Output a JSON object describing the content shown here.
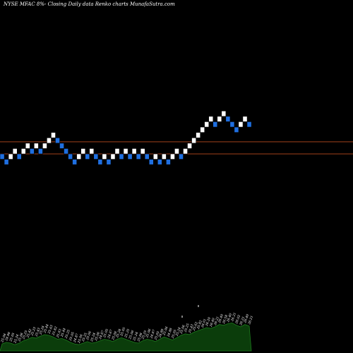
{
  "chart_data": {
    "type": "renko",
    "title": "NYSE MFAC 8%- Closing Daily data Renko charts MunafaSutra.com",
    "colors": {
      "background": "#000000",
      "up_brick": "#ffffff",
      "down_brick": "#1f6fe0",
      "brick_border": "#000000",
      "line_upper": "#a0401a",
      "line_lower": "#a0401a",
      "volume_fill": "#0b3d0b",
      "volume_stroke": "#1d7a1d",
      "label": "#ffffff"
    },
    "reference_lines": [
      25.55,
      25.1
    ],
    "bricks": [
      {
        "level": 25,
        "dir": "down"
      },
      {
        "level": 24.8,
        "dir": "down"
      },
      {
        "level": 25,
        "dir": "up"
      },
      {
        "level": 25.2,
        "dir": "up"
      },
      {
        "level": 25,
        "dir": "down"
      },
      {
        "level": 25.2,
        "dir": "up"
      },
      {
        "level": 25.4,
        "dir": "up"
      },
      {
        "level": 25.2,
        "dir": "down"
      },
      {
        "level": 25.4,
        "dir": "up"
      },
      {
        "level": 25.2,
        "dir": "down"
      },
      {
        "level": 25.4,
        "dir": "up"
      },
      {
        "level": 25.6,
        "dir": "up"
      },
      {
        "level": 25.8,
        "dir": "up"
      },
      {
        "level": 25.6,
        "dir": "down"
      },
      {
        "level": 25.4,
        "dir": "down"
      },
      {
        "level": 25.2,
        "dir": "down"
      },
      {
        "level": 25,
        "dir": "down"
      },
      {
        "level": 24.8,
        "dir": "down"
      },
      {
        "level": 25,
        "dir": "up"
      },
      {
        "level": 25.2,
        "dir": "up"
      },
      {
        "level": 25,
        "dir": "down"
      },
      {
        "level": 25.2,
        "dir": "up"
      },
      {
        "level": 25,
        "dir": "down"
      },
      {
        "level": 24.8,
        "dir": "down"
      },
      {
        "level": 25,
        "dir": "up"
      },
      {
        "level": 24.8,
        "dir": "down"
      },
      {
        "level": 25,
        "dir": "up"
      },
      {
        "level": 25.2,
        "dir": "up"
      },
      {
        "level": 25,
        "dir": "down"
      },
      {
        "level": 25.2,
        "dir": "up"
      },
      {
        "level": 25,
        "dir": "down"
      },
      {
        "level": 25.2,
        "dir": "up"
      },
      {
        "level": 25,
        "dir": "down"
      },
      {
        "level": 25.2,
        "dir": "up"
      },
      {
        "level": 25,
        "dir": "down"
      },
      {
        "level": 24.8,
        "dir": "down"
      },
      {
        "level": 25,
        "dir": "up"
      },
      {
        "level": 24.8,
        "dir": "down"
      },
      {
        "level": 25,
        "dir": "up"
      },
      {
        "level": 24.8,
        "dir": "down"
      },
      {
        "level": 25,
        "dir": "up"
      },
      {
        "level": 25.2,
        "dir": "up"
      },
      {
        "level": 25,
        "dir": "down"
      },
      {
        "level": 25.2,
        "dir": "up"
      },
      {
        "level": 25.4,
        "dir": "up"
      },
      {
        "level": 25.6,
        "dir": "up"
      },
      {
        "level": 25.8,
        "dir": "up"
      },
      {
        "level": 26,
        "dir": "up"
      },
      {
        "level": 26.2,
        "dir": "up"
      },
      {
        "level": 26.4,
        "dir": "up"
      },
      {
        "level": 26.2,
        "dir": "down"
      },
      {
        "level": 26.4,
        "dir": "up"
      },
      {
        "level": 26.6,
        "dir": "up"
      },
      {
        "level": 26.4,
        "dir": "down"
      },
      {
        "level": 26.2,
        "dir": "down"
      },
      {
        "level": 26,
        "dir": "down"
      },
      {
        "level": 26.2,
        "dir": "up"
      },
      {
        "level": 26.4,
        "dir": "up"
      },
      {
        "level": 26.2,
        "dir": "down"
      }
    ],
    "price_labels": [
      "25.06",
      "24.86",
      "25.05",
      "25.24",
      "25.06",
      "25.25",
      "25.42",
      "25.23",
      "25.43",
      "25.24",
      "25.44",
      "25.63",
      "25.82",
      "25.63",
      "25.44",
      "25.25",
      "25.05",
      "24.87",
      "25.06",
      "25.25",
      "25.06",
      "25.24",
      "25.06",
      "24.87",
      "25.05",
      "24.87",
      "25.06",
      "25.24",
      "25.05",
      "25.25",
      "25.06",
      "25.24",
      "25.06",
      "25.25",
      "25.06",
      "24.87",
      "25.05",
      "24.88",
      "25.06",
      "24.88",
      "25.05",
      "25.24",
      "25.06",
      "25.25",
      "25.43",
      "25.62",
      "25.82",
      "26.01",
      "26.20",
      "26.40",
      "26.21",
      "26.40",
      "26.58",
      "26.40",
      "26.21",
      "26.02",
      "26.21",
      "26.40",
      "26.21"
    ],
    "volume_relative": [
      0.18,
      0.22,
      0.2,
      0.16,
      0.2,
      0.26,
      0.3,
      0.35,
      0.33,
      0.38,
      0.42,
      0.4,
      0.36,
      0.3,
      0.32,
      0.28,
      0.22,
      0.18,
      0.16,
      0.2,
      0.24,
      0.2,
      0.22,
      0.26,
      0.3,
      0.28,
      0.24,
      0.3,
      0.34,
      0.3,
      0.26,
      0.22,
      0.2,
      0.26,
      0.3,
      0.28,
      0.24,
      0.3,
      0.36,
      0.32,
      0.28,
      0.34,
      0.4,
      0.44,
      0.42,
      0.48,
      0.52,
      0.56,
      0.6,
      0.58,
      0.62,
      0.68,
      0.66,
      0.7,
      0.72,
      0.66,
      0.62,
      0.68,
      0.64
    ]
  }
}
